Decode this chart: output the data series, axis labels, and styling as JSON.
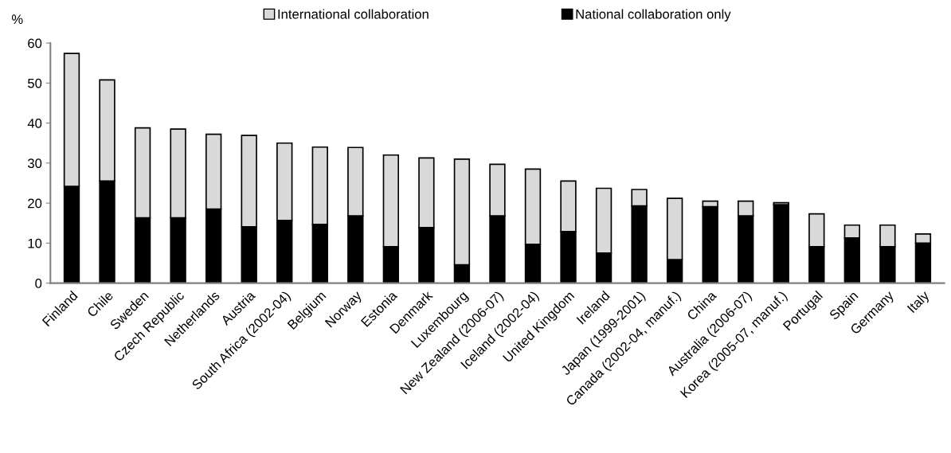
{
  "chart_data": {
    "type": "bar",
    "stacked": true,
    "ylabel": "%",
    "legend": "top",
    "categories": [
      "Finland",
      "Chile",
      "Sweden",
      "Czech Republic",
      "Netherlands",
      "Austria",
      "South Africa (2002-04)",
      "Belgium",
      "Norway",
      "Estonia",
      "Denmark",
      "Luxembourg",
      "New Zealand (2006-07)",
      "Iceland (2002-04)",
      "United Kingdom",
      "Ireland",
      "Japan (1999-2001)",
      "Canada (2002-04, manuf.)",
      "China",
      "Australia (2006-07)",
      "Korea (2005-07, manuf.)",
      "Portugal",
      "Spain",
      "Germany",
      "Italy"
    ],
    "series": [
      {
        "name": "National collaboration only",
        "color": "#000000",
        "values": [
          24.2,
          25.5,
          16.3,
          16.3,
          18.5,
          14.1,
          15.7,
          14.7,
          16.8,
          9.1,
          13.9,
          4.6,
          16.8,
          9.7,
          12.9,
          7.5,
          19.3,
          5.9,
          19.1,
          16.8,
          19.6,
          9.1,
          11.3,
          9.1,
          10.0
        ]
      },
      {
        "name": "International collaboration",
        "color": "#d9d9d9",
        "values": [
          33.2,
          25.3,
          22.5,
          22.2,
          18.7,
          22.8,
          19.3,
          19.3,
          17.1,
          22.9,
          17.4,
          26.4,
          12.9,
          18.8,
          12.6,
          16.2,
          4.1,
          15.3,
          1.4,
          3.7,
          0.5,
          8.2,
          3.2,
          5.4,
          2.3
        ]
      }
    ],
    "ylim": [
      0,
      60
    ],
    "yticks": [
      0,
      10,
      20,
      30,
      40,
      50,
      60
    ],
    "grid": false
  }
}
